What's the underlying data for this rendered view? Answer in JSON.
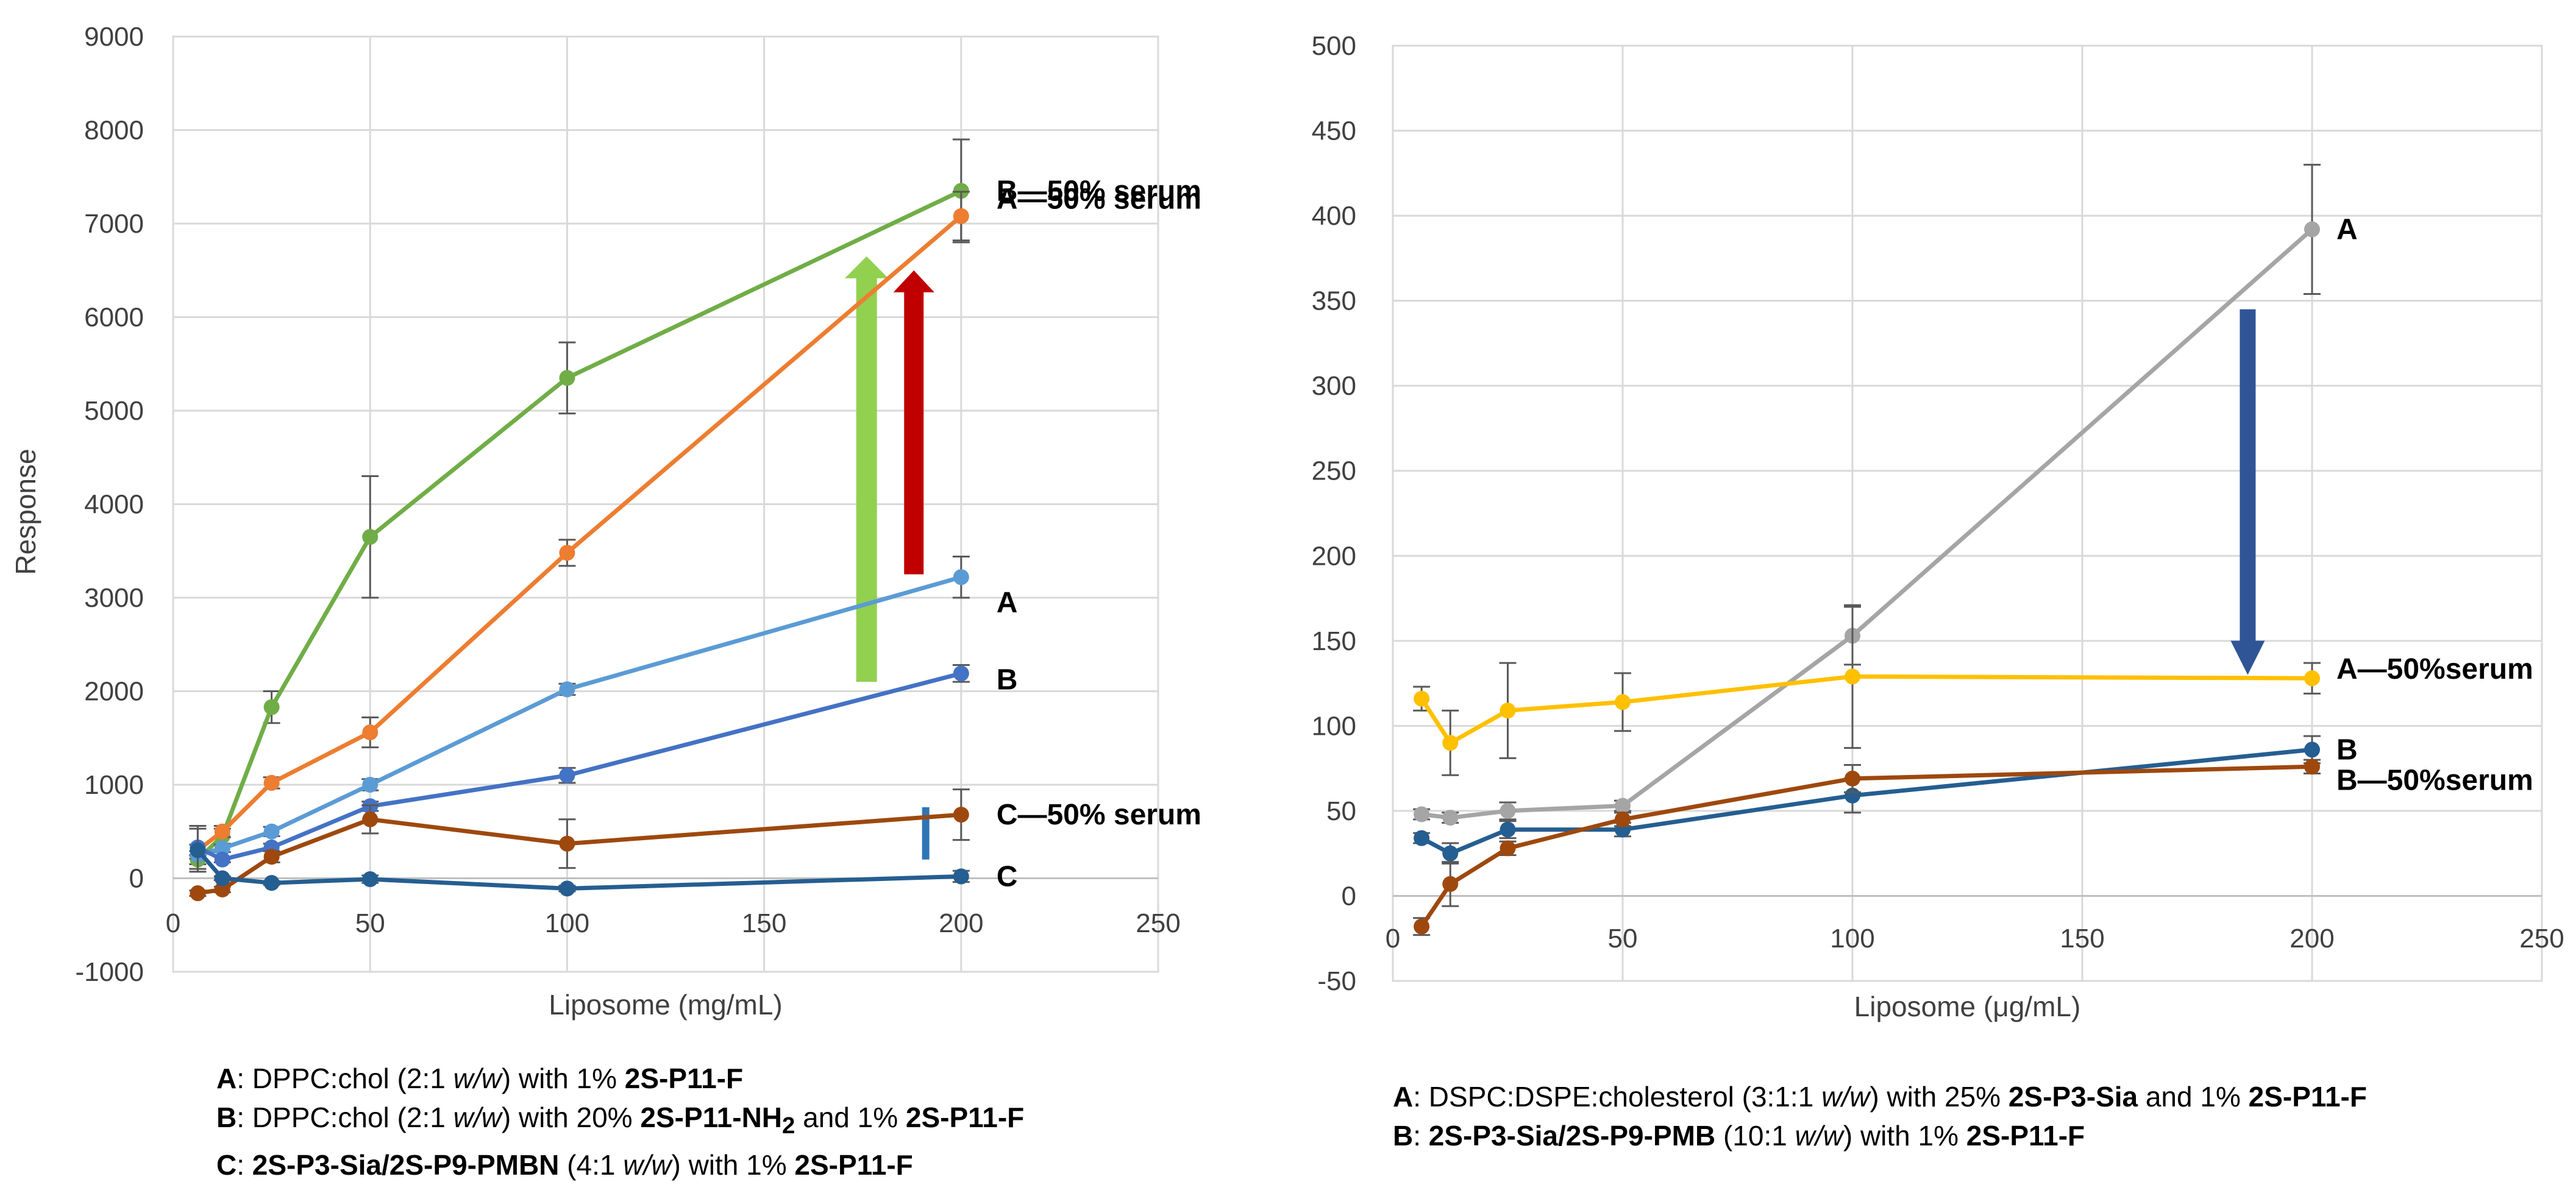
{
  "chart_data": [
    {
      "type": "line",
      "xlabel": "Liposome (mg/mL)",
      "ylabel": "Response",
      "xlim": [
        0,
        250
      ],
      "ylim": [
        -1000,
        9000
      ],
      "xticks": [
        0,
        50,
        100,
        150,
        200,
        250
      ],
      "yticks": [
        -1000,
        0,
        1000,
        2000,
        3000,
        4000,
        5000,
        6000,
        7000,
        8000,
        9000
      ],
      "grid": true,
      "series": [
        {
          "name": "B—50% serum",
          "color": "#70ad47",
          "x": [
            6.25,
            12.5,
            25,
            50,
            100,
            200
          ],
          "y": [
            200,
            450,
            1830,
            3650,
            5350,
            7350
          ],
          "err": [
            50,
            80,
            170,
            650,
            380,
            550
          ]
        },
        {
          "name": "A—50% serum",
          "color": "#ed7d31",
          "x": [
            6.25,
            12.5,
            25,
            50,
            100,
            200
          ],
          "y": [
            300,
            500,
            1020,
            1560,
            3480,
            7080
          ],
          "err": [
            60,
            60,
            60,
            160,
            140,
            260
          ]
        },
        {
          "name": "A",
          "color": "#5b9bd5",
          "x": [
            6.25,
            12.5,
            25,
            50,
            100,
            200
          ],
          "y": [
            250,
            320,
            500,
            1000,
            2020,
            3220
          ],
          "err": [
            40,
            40,
            50,
            60,
            60,
            220
          ]
        },
        {
          "name": "B",
          "color": "#4472c4",
          "x": [
            6.25,
            12.5,
            25,
            50,
            100,
            200
          ],
          "y": [
            330,
            200,
            330,
            770,
            1100,
            2190
          ],
          "err": [
            230,
            30,
            40,
            50,
            80,
            90
          ]
        },
        {
          "name": "C—50% serum",
          "color": "#9e480e",
          "x": [
            6.25,
            12.5,
            25,
            50,
            100,
            200
          ],
          "y": [
            -160,
            -120,
            230,
            630,
            370,
            680
          ],
          "err": [
            30,
            30,
            60,
            150,
            260,
            270
          ]
        },
        {
          "name": "C",
          "color": "#255e91",
          "x": [
            6.25,
            12.5,
            25,
            50,
            100,
            200
          ],
          "y": [
            300,
            0,
            -50,
            -10,
            -110,
            20
          ],
          "err": [
            230,
            20,
            20,
            40,
            30,
            60
          ]
        }
      ],
      "annotations": [
        {
          "type": "arrow",
          "direction": "up",
          "color": "#92d050",
          "x": 176,
          "from": 2100,
          "to": 6650
        },
        {
          "type": "arrow",
          "direction": "up",
          "color": "#c00000",
          "x": 188,
          "from": 3250,
          "to": 6500
        },
        {
          "type": "arrow",
          "direction": "up",
          "color": "#2e75b6",
          "x": 191,
          "from": 200,
          "to": 760
        }
      ]
    },
    {
      "type": "line",
      "xlabel": "Liposome (μg/mL)",
      "ylabel": "",
      "xlim": [
        0,
        250
      ],
      "ylim": [
        -50,
        500
      ],
      "xticks": [
        0,
        50,
        100,
        150,
        200,
        250
      ],
      "yticks": [
        -50,
        0,
        50,
        100,
        150,
        200,
        250,
        300,
        350,
        400,
        450,
        500
      ],
      "grid": true,
      "series": [
        {
          "name": "A",
          "color": "#a5a5a5",
          "x": [
            6.25,
            12.5,
            25,
            50,
            100,
            200
          ],
          "y": [
            48,
            46,
            50,
            53,
            153,
            392
          ],
          "err": [
            3,
            3,
            5,
            3,
            17,
            38
          ]
        },
        {
          "name": "A—50%serum",
          "color": "#ffc000",
          "x": [
            6.25,
            12.5,
            25,
            50,
            100,
            200
          ],
          "y": [
            116,
            90,
            109,
            114,
            129,
            128
          ],
          "err": [
            7,
            19,
            28,
            17,
            42,
            9
          ]
        },
        {
          "name": "B",
          "color": "#255e91",
          "x": [
            6.25,
            12.5,
            25,
            50,
            100,
            200
          ],
          "y": [
            34,
            25,
            39,
            39,
            59,
            86
          ],
          "err": [
            3,
            6,
            5,
            4,
            10,
            8
          ]
        },
        {
          "name": "B—50%serum",
          "color": "#9e480e",
          "x": [
            6.25,
            12.5,
            25,
            50,
            100,
            200
          ],
          "y": [
            -18,
            7,
            28,
            45,
            69,
            76
          ],
          "err": [
            5,
            13,
            4,
            4,
            8,
            4
          ]
        }
      ],
      "annotations": [
        {
          "type": "arrow",
          "direction": "down",
          "color": "#2f5597",
          "x": 186,
          "from": 345,
          "to": 130
        }
      ]
    }
  ],
  "captions": {
    "left": [
      [
        {
          "t": "A",
          "b": true
        },
        {
          "t": ": DPPC:chol (2:1 "
        },
        {
          "t": "w/w",
          "i": true
        },
        {
          "t": ") with 1% "
        },
        {
          "t": "2S-P11-F",
          "b": true
        }
      ],
      [
        {
          "t": "B",
          "b": true
        },
        {
          "t": ": DPPC:chol (2:1 "
        },
        {
          "t": "w/w",
          "i": true
        },
        {
          "t": ") with 20% "
        },
        {
          "t": "2S-P11-NH",
          "b": true
        },
        {
          "t": "2",
          "b": true,
          "sub": true
        },
        {
          "t": " and 1% "
        },
        {
          "t": "2S-P11-F",
          "b": true
        }
      ],
      [
        {
          "t": "C",
          "b": true
        },
        {
          "t": ": "
        },
        {
          "t": "2S-P3-Sia/2S-P9-PMBN",
          "b": true
        },
        {
          "t": " (4:1 "
        },
        {
          "t": "w/w",
          "i": true
        },
        {
          "t": ") with 1% "
        },
        {
          "t": "2S-P11-F",
          "b": true
        }
      ]
    ],
    "right": [
      [
        {
          "t": "A",
          "b": true
        },
        {
          "t": ": DSPC:DSPE:cholesterol (3:1:1 "
        },
        {
          "t": "w/w",
          "i": true
        },
        {
          "t": ") with 25% "
        },
        {
          "t": "2S-P3-Sia",
          "b": true
        },
        {
          "t": " and 1% "
        },
        {
          "t": "2S-P11-F",
          "b": true
        }
      ],
      [
        {
          "t": "B",
          "b": true
        },
        {
          "t": ": "
        },
        {
          "t": "2S-P3-Sia/2S-P9-PMB",
          "b": true
        },
        {
          "t": " (10:1 "
        },
        {
          "t": "w/w",
          "i": true
        },
        {
          "t": ") with 1% "
        },
        {
          "t": "2S-P11-F",
          "b": true
        }
      ]
    ]
  }
}
